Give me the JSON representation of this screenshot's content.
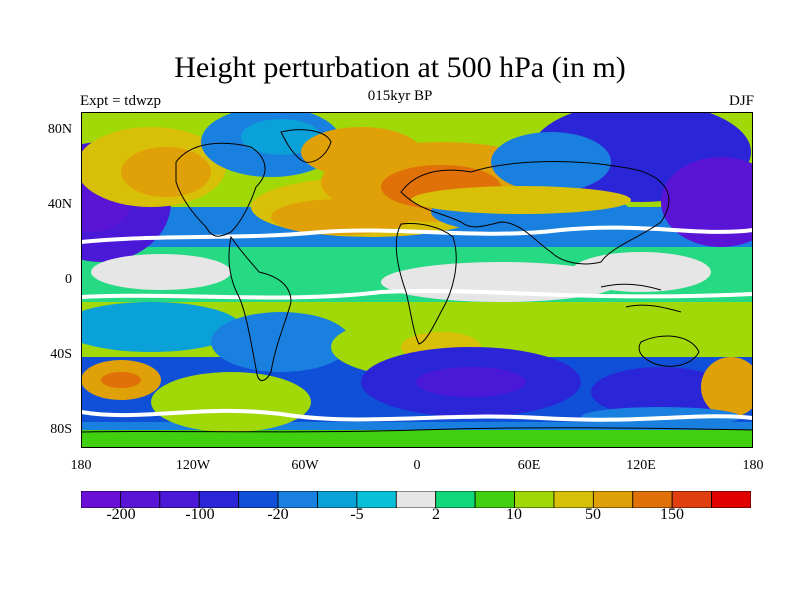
{
  "map_title": "Height perturbation at 500 hPa (in m)",
  "subtitle": "015kyr BP",
  "left_label": "Expt = tdwzp",
  "right_label": "DJF",
  "lat_ticks": [
    "80N",
    "40N",
    "0",
    "40S",
    "80S"
  ],
  "lon_ticks": [
    "180",
    "120W",
    "60W",
    "0",
    "60E",
    "120E",
    "180"
  ],
  "colorbar": {
    "colors": [
      "#6a0fd6",
      "#5a14d6",
      "#4a19d8",
      "#2a26d8",
      "#1050d8",
      "#1a80e0",
      "#0aa0d8",
      "#08c0d8",
      "#e6e6e6",
      "#10d878",
      "#40d010",
      "#a0d808",
      "#d8c008",
      "#e0a008",
      "#e07008",
      "#e04010",
      "#e00000"
    ],
    "labels": [
      "-200",
      "-100",
      "-20",
      "-5",
      "2",
      "10",
      "50",
      "150"
    ]
  },
  "colors": {
    "coastline": "#000000",
    "land_gap": "#ffffff",
    "frame": "#000000"
  }
}
